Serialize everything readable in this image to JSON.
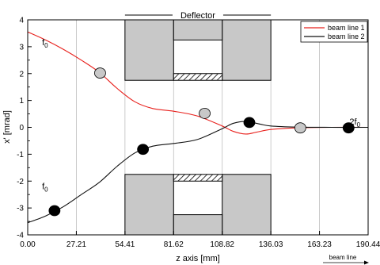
{
  "chart_data": {
    "type": "line",
    "title": "Deflector",
    "xlabel": "z axis [mm]",
    "ylabel": "x' [mrad]",
    "xlim": [
      0,
      190.44
    ],
    "ylim": [
      -4,
      4
    ],
    "x_ticks": [
      "0.00",
      "27.21",
      "54.41",
      "81.62",
      "108.82",
      "136.03",
      "163.23",
      "190.44"
    ],
    "y_ticks": [
      "4",
      "3",
      "2",
      "1",
      "0",
      "-1",
      "-2",
      "-3",
      "-4"
    ],
    "x_grid": true,
    "legend_position": "top-right",
    "series": [
      {
        "name": "beam line 1",
        "color": "#e8201c",
        "x": [
          0,
          10,
          20,
          30,
          40,
          50,
          60,
          70,
          81.6,
          95,
          108.8,
          115,
          122,
          128,
          136,
          150,
          170,
          190.44
        ],
        "y": [
          3.55,
          3.25,
          2.9,
          2.5,
          2.05,
          1.45,
          0.95,
          0.7,
          0.6,
          0.42,
          0.05,
          -0.15,
          -0.25,
          -0.18,
          -0.08,
          -0.02,
          0.0,
          0.0
        ]
      },
      {
        "name": "beam line 2",
        "color": "#111111",
        "x": [
          0,
          10,
          20,
          30,
          40,
          50,
          60,
          70,
          81.6,
          95,
          108.8,
          115,
          122,
          130,
          136,
          150,
          170,
          190.44
        ],
        "y": [
          -3.55,
          -3.3,
          -2.95,
          -2.5,
          -2.05,
          -1.45,
          -0.95,
          -0.7,
          -0.6,
          -0.45,
          -0.05,
          0.15,
          0.22,
          0.12,
          0.05,
          0.01,
          0.0,
          0.0
        ]
      }
    ],
    "markers": [
      {
        "x": 40.5,
        "y": 2.02,
        "color": "#c8c8c8"
      },
      {
        "x": 99.0,
        "y": 0.52,
        "color": "#c8c8c8"
      },
      {
        "x": 152.5,
        "y": -0.02,
        "color": "#c8c8c8"
      },
      {
        "x": 15.0,
        "y": -3.1,
        "color": "#000000"
      },
      {
        "x": 64.5,
        "y": -0.82,
        "color": "#000000"
      },
      {
        "x": 124.0,
        "y": 0.18,
        "color": "#000000"
      },
      {
        "x": 179.5,
        "y": -0.02,
        "color": "#000000"
      }
    ],
    "annotations": [
      {
        "text_main": "f",
        "text_sub": "0",
        "x": 8,
        "y": 3.05
      },
      {
        "text_main": "f",
        "text_sub": "0",
        "x": 8,
        "y": -2.3
      },
      {
        "text_main": "2f",
        "text_sub": "0",
        "x": 180,
        "y": 0.1
      }
    ],
    "deflector": {
      "label": "Deflector",
      "fill": "#c8c8c8"
    },
    "beam_arrow_label": "beam line"
  }
}
